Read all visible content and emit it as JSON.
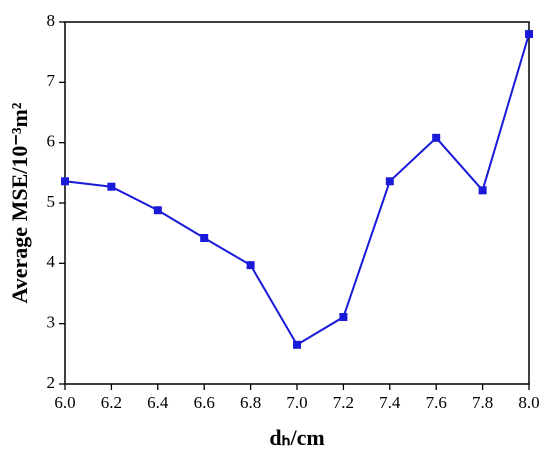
{
  "chart_data": {
    "type": "line",
    "x_label": "dₕ/cm",
    "y_label": "Average MSE/10⁻³m²",
    "x": [
      6.0,
      6.2,
      6.4,
      6.6,
      6.8,
      7.0,
      7.2,
      7.4,
      7.6,
      7.8,
      8.0
    ],
    "series": [
      {
        "color": "#1a1ad9",
        "values": [
          5.36,
          5.27,
          4.88,
          4.42,
          3.97,
          2.65,
          3.11,
          5.36,
          6.08,
          5.21,
          7.8
        ]
      }
    ],
    "xlim": [
      6,
      8
    ],
    "xticks": [
      {
        "value": 6,
        "label": "6.0"
      },
      {
        "value": 6.2,
        "label": "6.2"
      },
      {
        "value": 6.4,
        "label": "6.4"
      },
      {
        "value": 6.6,
        "label": "6.6"
      },
      {
        "value": 6.8,
        "label": "6.8"
      },
      {
        "value": 7,
        "label": "7.0"
      },
      {
        "value": 7.2,
        "label": "7.2"
      },
      {
        "value": 7.4,
        "label": "7.4"
      },
      {
        "value": 7.6,
        "label": "7.6"
      },
      {
        "value": 7.8,
        "label": "7.8"
      },
      {
        "value": 8,
        "label": "8.0"
      }
    ],
    "ylim": [
      2,
      8
    ],
    "yticks": [
      2,
      3,
      4,
      5,
      6,
      7,
      8
    ],
    "grid": false
  }
}
